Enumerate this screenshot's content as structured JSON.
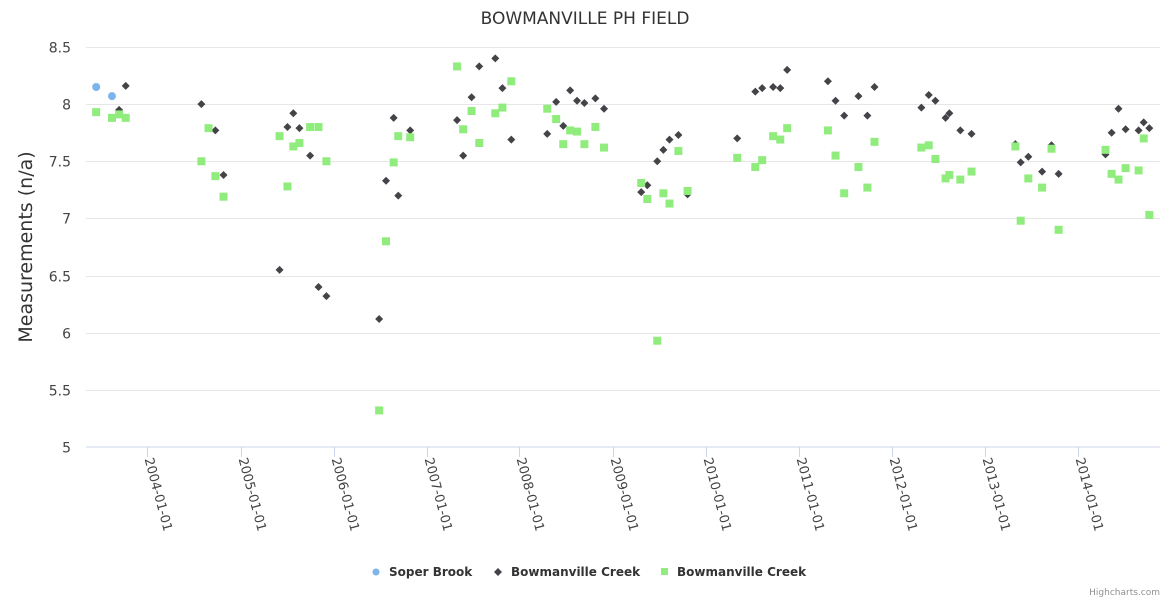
{
  "chart_data": {
    "type": "scatter",
    "title": "BOWMANVILLE PH FIELD",
    "xlabel": "",
    "ylabel": "Measurements (n/a)",
    "xlim": [
      "2003-05-05",
      "2014-11-20"
    ],
    "ylim": [
      5,
      8.5
    ],
    "y_ticks": [
      "5",
      "5.5",
      "6",
      "6.5",
      "7",
      "7.5",
      "8",
      "8.5"
    ],
    "y_tick_values": [
      5,
      5.5,
      6,
      6.5,
      7,
      7.5,
      8,
      8.5
    ],
    "x_ticks": [
      "2004-01-01",
      "2005-01-01",
      "2006-01-01",
      "2007-01-01",
      "2008-01-01",
      "2009-01-01",
      "2010-01-01",
      "2011-01-01",
      "2012-01-01",
      "2013-01-01",
      "2014-01-01"
    ],
    "grid": true,
    "legend_position": "bottom-center",
    "series": [
      {
        "name": "Soper Brook",
        "marker": "circle",
        "color": "#7cb5ec",
        "points": [
          [
            "2003-06-14",
            8.15
          ],
          [
            "2003-08-15",
            8.07
          ]
        ]
      },
      {
        "name": "Bowmanville Creek",
        "marker": "diamond",
        "color": "#434348",
        "points": [
          [
            "2003-09-12",
            7.95
          ],
          [
            "2003-10-08",
            8.16
          ],
          [
            "2004-07-31",
            8.0
          ],
          [
            "2004-09-24",
            7.77
          ],
          [
            "2004-10-26",
            7.38
          ],
          [
            "2005-06-03",
            6.55
          ],
          [
            "2005-07-04",
            7.8
          ],
          [
            "2005-07-27",
            7.92
          ],
          [
            "2005-08-20",
            7.79
          ],
          [
            "2005-10-01",
            7.55
          ],
          [
            "2005-11-03",
            6.4
          ],
          [
            "2005-12-04",
            6.32
          ],
          [
            "2006-06-29",
            6.12
          ],
          [
            "2006-07-26",
            7.33
          ],
          [
            "2006-08-25",
            7.88
          ],
          [
            "2006-09-12",
            7.2
          ],
          [
            "2006-10-29",
            7.77
          ],
          [
            "2007-05-01",
            7.86
          ],
          [
            "2007-05-25",
            7.55
          ],
          [
            "2007-06-27",
            8.06
          ],
          [
            "2007-07-27",
            8.33
          ],
          [
            "2007-09-28",
            8.4
          ],
          [
            "2007-10-26",
            8.14
          ],
          [
            "2007-11-30",
            7.69
          ],
          [
            "2008-04-19",
            7.74
          ],
          [
            "2008-05-24",
            8.02
          ],
          [
            "2008-06-21",
            7.81
          ],
          [
            "2008-07-18",
            8.12
          ],
          [
            "2008-08-14",
            8.03
          ],
          [
            "2008-09-12",
            8.01
          ],
          [
            "2008-10-25",
            8.05
          ],
          [
            "2008-11-28",
            7.96
          ],
          [
            "2009-04-23",
            7.23
          ],
          [
            "2009-05-17",
            7.29
          ],
          [
            "2009-06-25",
            7.5
          ],
          [
            "2009-07-19",
            7.6
          ],
          [
            "2009-08-12",
            7.69
          ],
          [
            "2009-09-16",
            7.73
          ],
          [
            "2009-10-22",
            7.21
          ],
          [
            "2010-05-05",
            7.7
          ],
          [
            "2010-07-15",
            8.11
          ],
          [
            "2010-08-11",
            8.14
          ],
          [
            "2010-09-23",
            8.15
          ],
          [
            "2010-10-21",
            8.14
          ],
          [
            "2010-11-17",
            8.3
          ],
          [
            "2011-04-26",
            8.2
          ],
          [
            "2011-05-26",
            8.03
          ],
          [
            "2011-06-29",
            7.9
          ],
          [
            "2011-08-24",
            8.07
          ],
          [
            "2011-09-28",
            7.9
          ],
          [
            "2011-10-26",
            8.15
          ],
          [
            "2012-04-27",
            7.97
          ],
          [
            "2012-05-26",
            8.08
          ],
          [
            "2012-06-21",
            8.03
          ],
          [
            "2012-07-31",
            7.88
          ],
          [
            "2012-08-15",
            7.92
          ],
          [
            "2012-09-27",
            7.77
          ],
          [
            "2012-11-10",
            7.74
          ],
          [
            "2013-05-01",
            7.65
          ],
          [
            "2013-05-22",
            7.49
          ],
          [
            "2013-06-21",
            7.54
          ],
          [
            "2013-08-14",
            7.41
          ],
          [
            "2013-09-20",
            7.64
          ],
          [
            "2013-10-18",
            7.39
          ],
          [
            "2014-04-20",
            7.56
          ],
          [
            "2014-05-14",
            7.75
          ],
          [
            "2014-06-10",
            7.96
          ],
          [
            "2014-07-08",
            7.78
          ],
          [
            "2014-08-28",
            7.77
          ],
          [
            "2014-09-17",
            7.84
          ],
          [
            "2014-10-09",
            7.79
          ]
        ]
      },
      {
        "name": "Bowmanville Creek",
        "marker": "square",
        "color": "#90ed7d",
        "points": [
          [
            "2003-06-14",
            7.93
          ],
          [
            "2003-08-15",
            7.88
          ],
          [
            "2003-09-12",
            7.91
          ],
          [
            "2003-10-08",
            7.88
          ],
          [
            "2004-07-31",
            7.5
          ],
          [
            "2004-08-28",
            7.79
          ],
          [
            "2004-09-24",
            7.37
          ],
          [
            "2004-10-26",
            7.19
          ],
          [
            "2005-06-03",
            7.72
          ],
          [
            "2005-07-04",
            7.28
          ],
          [
            "2005-07-27",
            7.63
          ],
          [
            "2005-08-20",
            7.66
          ],
          [
            "2005-10-01",
            7.8
          ],
          [
            "2005-11-03",
            7.8
          ],
          [
            "2005-12-04",
            7.5
          ],
          [
            "2006-06-29",
            5.32
          ],
          [
            "2006-07-26",
            6.8
          ],
          [
            "2006-08-25",
            7.49
          ],
          [
            "2006-09-12",
            7.72
          ],
          [
            "2006-10-29",
            7.71
          ],
          [
            "2007-05-01",
            8.33
          ],
          [
            "2007-05-25",
            7.78
          ],
          [
            "2007-06-27",
            7.94
          ],
          [
            "2007-07-27",
            7.66
          ],
          [
            "2007-09-28",
            7.92
          ],
          [
            "2007-10-26",
            7.97
          ],
          [
            "2007-11-30",
            8.2
          ],
          [
            "2008-04-19",
            7.96
          ],
          [
            "2008-05-24",
            7.87
          ],
          [
            "2008-06-21",
            7.65
          ],
          [
            "2008-07-18",
            7.77
          ],
          [
            "2008-08-14",
            7.76
          ],
          [
            "2008-09-12",
            7.65
          ],
          [
            "2008-10-25",
            7.8
          ],
          [
            "2008-11-28",
            7.62
          ],
          [
            "2009-04-23",
            7.31
          ],
          [
            "2009-05-17",
            7.17
          ],
          [
            "2009-06-25",
            5.93
          ],
          [
            "2009-07-19",
            7.22
          ],
          [
            "2009-08-12",
            7.13
          ],
          [
            "2009-09-16",
            7.59
          ],
          [
            "2009-10-22",
            7.24
          ],
          [
            "2010-05-05",
            7.53
          ],
          [
            "2010-07-15",
            7.45
          ],
          [
            "2010-08-11",
            7.51
          ],
          [
            "2010-09-23",
            7.72
          ],
          [
            "2010-10-21",
            7.69
          ],
          [
            "2010-11-17",
            7.79
          ],
          [
            "2011-04-26",
            7.77
          ],
          [
            "2011-05-26",
            7.55
          ],
          [
            "2011-06-29",
            7.22
          ],
          [
            "2011-08-24",
            7.45
          ],
          [
            "2011-09-28",
            7.27
          ],
          [
            "2011-10-26",
            7.67
          ],
          [
            "2012-04-27",
            7.62
          ],
          [
            "2012-05-26",
            7.64
          ],
          [
            "2012-06-21",
            7.52
          ],
          [
            "2012-07-31",
            7.35
          ],
          [
            "2012-08-15",
            7.38
          ],
          [
            "2012-09-27",
            7.34
          ],
          [
            "2012-11-10",
            7.41
          ],
          [
            "2013-05-01",
            7.63
          ],
          [
            "2013-05-22",
            6.98
          ],
          [
            "2013-06-21",
            7.35
          ],
          [
            "2013-08-14",
            7.27
          ],
          [
            "2013-09-20",
            7.61
          ],
          [
            "2013-10-18",
            6.9
          ],
          [
            "2014-04-20",
            7.6
          ],
          [
            "2014-05-14",
            7.39
          ],
          [
            "2014-06-10",
            7.34
          ],
          [
            "2014-07-08",
            7.44
          ],
          [
            "2014-08-28",
            7.42
          ],
          [
            "2014-09-17",
            7.7
          ],
          [
            "2014-10-09",
            7.03
          ]
        ]
      }
    ]
  },
  "credits": "Highcharts.com"
}
